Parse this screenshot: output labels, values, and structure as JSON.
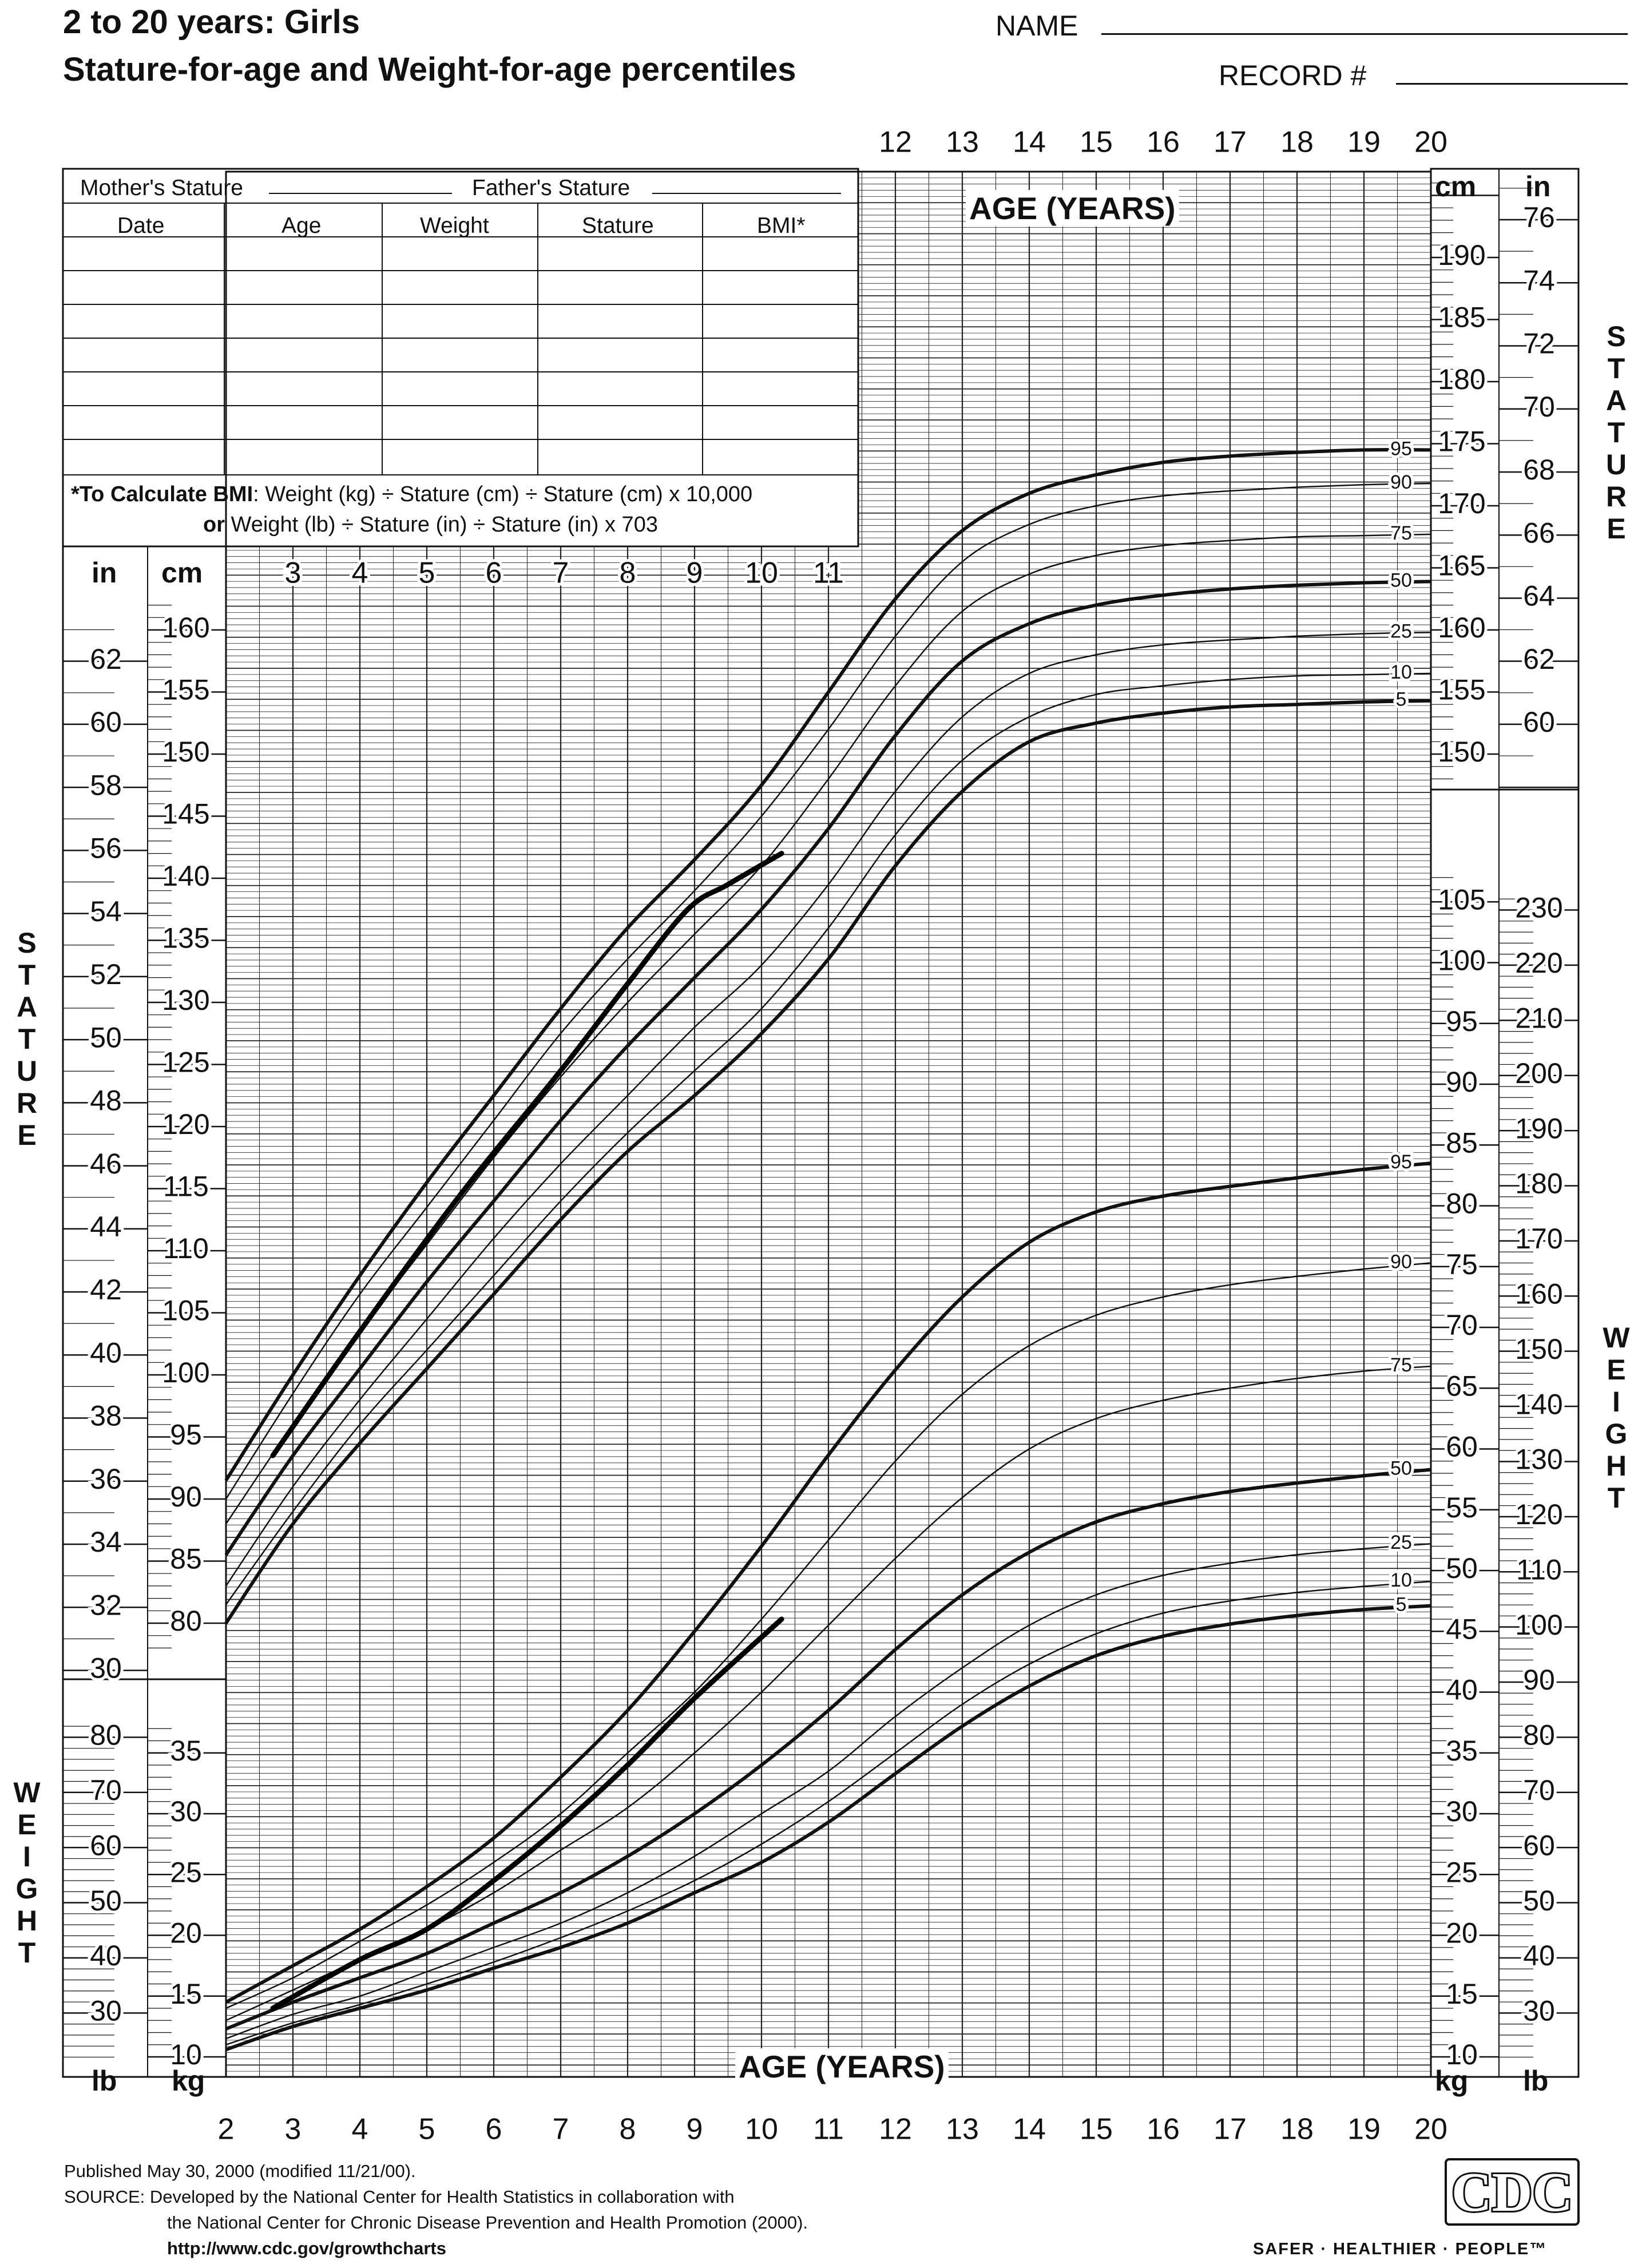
{
  "header": {
    "title_line1": "2 to 20 years: Girls",
    "title_line2": "Stature-for-age and Weight-for-age percentiles",
    "name_label": "NAME",
    "record_label": "RECORD #"
  },
  "record_table": {
    "mother_label": "Mother's Stature",
    "father_label": "Father's Stature",
    "columns": [
      "Date",
      "Age",
      "Weight",
      "Stature",
      "BMI*"
    ],
    "bmi_note_bold": "*To Calculate BMI",
    "bmi_note_rest": ": Weight (kg) ÷ Stature (cm) ÷ Stature (cm) x 10,000",
    "bmi_note2_bold": "or",
    "bmi_note2_rest": " Weight (lb) ÷ Stature (in) ÷ Stature (in) x 703"
  },
  "axis_labels": {
    "age_years": "AGE (YEARS)",
    "stature_vertical": "STATURE",
    "weight_vertical": "WEIGHT",
    "in": "in",
    "cm": "cm",
    "lb": "lb",
    "kg": "kg"
  },
  "footer": {
    "published": "Published May 30, 2000 (modified 11/21/00).",
    "source1": "SOURCE: Developed by the National Center for Health Statistics in collaboration with",
    "source2": "the National Center for Chronic Disease Prevention and Health Promotion (2000).",
    "url": "http://www.cdc.gov/growthcharts",
    "logo_text": "CDC",
    "slogan": "SAFER · HEALTHIER · PEOPLE™"
  },
  "chart_data": [
    {
      "type": "line",
      "title": "Stature-for-age percentiles",
      "xlabel": "AGE (YEARS)",
      "ylabel": "STATURE (cm)",
      "xlim": [
        2,
        20
      ],
      "ylim": [
        77,
        197
      ],
      "x_ticks": [
        2,
        3,
        4,
        5,
        6,
        7,
        8,
        9,
        10,
        11,
        12,
        13,
        14,
        15,
        16,
        17,
        18,
        19,
        20
      ],
      "x": [
        2,
        3,
        4,
        5,
        6,
        7,
        8,
        9,
        10,
        11,
        12,
        13,
        14,
        15,
        16,
        17,
        18,
        19,
        20
      ],
      "series": [
        {
          "name": "95",
          "values": [
            91.5,
            100,
            108,
            115.5,
            122.5,
            129.5,
            136,
            141.5,
            147.5,
            155,
            162.5,
            168,
            171,
            172.5,
            173.5,
            174,
            174.3,
            174.5,
            174.5
          ]
        },
        {
          "name": "90",
          "values": [
            90,
            98.5,
            106.5,
            113.5,
            120.5,
            127.5,
            133.5,
            139,
            145,
            152,
            159.5,
            165.5,
            168.5,
            170,
            170.8,
            171.2,
            171.5,
            171.7,
            171.8
          ]
        },
        {
          "name": "75",
          "values": [
            88,
            96,
            103.5,
            110.5,
            117.5,
            124,
            130,
            135.5,
            141,
            148,
            155.5,
            161.5,
            164.5,
            166,
            166.8,
            167.2,
            167.5,
            167.6,
            167.7
          ]
        },
        {
          "name": "50",
          "values": [
            85.5,
            93.5,
            100.5,
            107.5,
            114,
            120.5,
            126.5,
            132,
            137.5,
            144,
            151.5,
            157.5,
            160.5,
            162,
            162.8,
            163.3,
            163.6,
            163.8,
            163.9
          ]
        },
        {
          "name": "25",
          "values": [
            83,
            91,
            98,
            104.5,
            111,
            117,
            122.5,
            128,
            133,
            139.5,
            147,
            153,
            156.5,
            158,
            158.8,
            159.2,
            159.5,
            159.7,
            159.8
          ]
        },
        {
          "name": "10",
          "values": [
            81.5,
            89,
            96,
            102,
            108,
            114,
            119.5,
            124.5,
            129.5,
            136,
            143.5,
            149.5,
            153,
            154.8,
            155.5,
            156,
            156.3,
            156.4,
            156.5
          ]
        },
        {
          "name": "5",
          "values": [
            80,
            88,
            94.5,
            100.5,
            106.5,
            112.5,
            118,
            122.5,
            127.5,
            133.5,
            141,
            147,
            151,
            152.5,
            153.3,
            153.8,
            154,
            154.2,
            154.3
          ]
        }
      ],
      "plotted_track": {
        "x": [
          2.7,
          4.0,
          5.5,
          7.0,
          8.0,
          8.9,
          9.5,
          10.3
        ],
        "values": [
          93.5,
          103.5,
          114.5,
          124.5,
          131.5,
          137.5,
          139.5,
          142
        ]
      }
    },
    {
      "type": "line",
      "title": "Weight-for-age percentiles",
      "xlabel": "AGE (YEARS)",
      "ylabel": "WEIGHT (kg)",
      "xlim": [
        2,
        20
      ],
      "ylim": [
        8,
        108
      ],
      "x_ticks": [
        2,
        3,
        4,
        5,
        6,
        7,
        8,
        9,
        10,
        11,
        12,
        13,
        14,
        15,
        16,
        17,
        18,
        19,
        20
      ],
      "x": [
        2,
        3,
        4,
        5,
        6,
        7,
        8,
        9,
        10,
        11,
        12,
        13,
        14,
        15,
        16,
        17,
        18,
        19,
        20
      ],
      "series": [
        {
          "name": "95",
          "values": [
            14.5,
            17.5,
            20.5,
            24,
            28,
            33,
            38.5,
            45,
            52,
            59.5,
            66.5,
            72.5,
            77,
            79.5,
            80.8,
            81.6,
            82.3,
            83,
            83.5
          ]
        },
        {
          "name": "90",
          "values": [
            14,
            16.5,
            19.5,
            22.5,
            26,
            30,
            35,
            40,
            46,
            52.5,
            59,
            64.5,
            68.5,
            71,
            72.5,
            73.5,
            74.2,
            74.8,
            75.3
          ]
        },
        {
          "name": "75",
          "values": [
            13,
            15.5,
            18,
            20.5,
            23.5,
            27,
            30.5,
            35,
            40,
            45.5,
            51,
            56,
            60,
            62.5,
            64,
            65,
            65.8,
            66.4,
            66.8
          ]
        },
        {
          "name": "50",
          "values": [
            12.3,
            14.5,
            16.5,
            18.5,
            21,
            23.5,
            26.5,
            30,
            34,
            38.5,
            43.5,
            48,
            51.5,
            54,
            55.5,
            56.5,
            57.2,
            57.8,
            58.3
          ]
        },
        {
          "name": "25",
          "values": [
            11.5,
            13.5,
            15,
            17,
            19,
            21,
            23.5,
            26.5,
            30,
            33.5,
            38,
            42,
            45.5,
            48,
            49.6,
            50.6,
            51.3,
            51.8,
            52.2
          ]
        },
        {
          "name": "10",
          "values": [
            11,
            12.8,
            14.3,
            16,
            17.8,
            19.8,
            22,
            24.5,
            27.5,
            31,
            35,
            39,
            42.3,
            44.8,
            46.5,
            47.5,
            48.2,
            48.7,
            49.1
          ]
        },
        {
          "name": "5",
          "values": [
            10.6,
            12.5,
            14,
            15.5,
            17.3,
            19,
            21,
            23.5,
            26,
            29.3,
            33.3,
            37.2,
            40.5,
            43,
            44.6,
            45.6,
            46.3,
            46.8,
            47.1
          ]
        }
      ],
      "plotted_track": {
        "x": [
          2.7,
          4.0,
          5.0,
          6.0,
          7.0,
          8.0,
          9.0,
          10.3
        ],
        "values": [
          14,
          18,
          20.5,
          24.5,
          29,
          34,
          39.5,
          46
        ]
      }
    }
  ]
}
